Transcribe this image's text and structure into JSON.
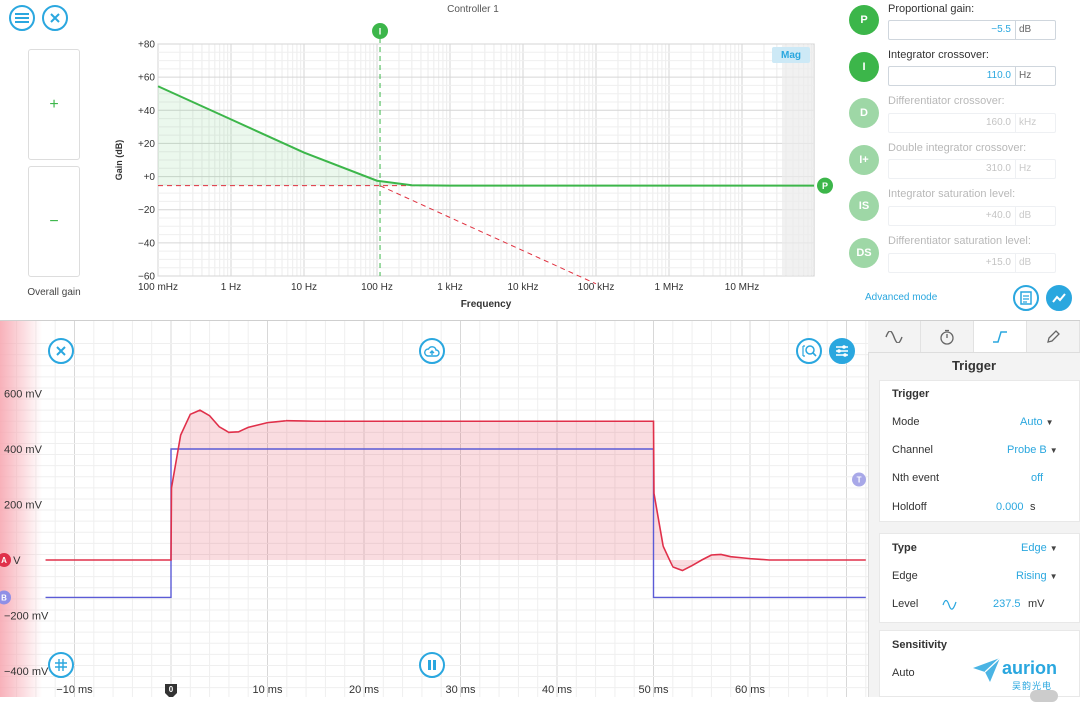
{
  "controller": {
    "title": "Controller 1",
    "overall_gain_label": "Overall gain",
    "plus": "+",
    "minus": "−",
    "mag_badge": "Mag",
    "advanced_mode": "Advanced mode",
    "marker_i": "I",
    "marker_p": "P",
    "params": [
      {
        "badge": "P",
        "label": "Proportional gain:",
        "value": "−5.5",
        "unit": "dB",
        "enabled": true
      },
      {
        "badge": "I",
        "label": "Integrator crossover:",
        "value": "110.0",
        "unit": "Hz",
        "enabled": true
      },
      {
        "badge": "D",
        "label": "Differentiator crossover:",
        "value": "160.0",
        "unit": "kHz",
        "enabled": false
      },
      {
        "badge": "I+",
        "label": "Double integrator crossover:",
        "value": "310.0",
        "unit": "Hz",
        "enabled": false
      },
      {
        "badge": "IS",
        "label": "Integrator saturation level:",
        "value": "+40.0",
        "unit": "dB",
        "enabled": false
      },
      {
        "badge": "DS",
        "label": "Differentiator saturation level:",
        "value": "+15.0",
        "unit": "dB",
        "enabled": false
      }
    ],
    "colors": {
      "green": "#3cb64a",
      "accent": "#2aa7df",
      "red": "#e0303f",
      "disabled": "#9ed7a6"
    }
  },
  "chart_data": [
    {
      "type": "line",
      "title": "Controller 1",
      "xlabel": "Frequency",
      "ylabel": "Gain (dB)",
      "xscale": "log",
      "xlim_hz": [
        0.1,
        100000000
      ],
      "ylim": [
        -60,
        80
      ],
      "yticks": [
        80,
        60,
        40,
        20,
        0,
        -20,
        -40,
        -60
      ],
      "ytick_labels": [
        "+80",
        "+60",
        "+40",
        "+20",
        "+0",
        "−20",
        "−40",
        "−60"
      ],
      "xticks_hz": [
        0.1,
        1,
        10,
        100,
        1000,
        10000,
        100000,
        1000000,
        10000000
      ],
      "xtick_labels": [
        "100 mHz",
        "1 Hz",
        "10 Hz",
        "100 Hz",
        "1 kHz",
        "10 kHz",
        "100 kHz",
        "1 MHz",
        "10 MHz"
      ],
      "grid": true,
      "series": [
        {
          "name": "",
          "style": "solid",
          "color": "#3cb64a",
          "x": [
            0.1,
            1,
            10,
            100,
            300,
            1000,
            100000000
          ],
          "y": [
            54.5,
            34.5,
            14.5,
            -2.5,
            -5.2,
            -5.5,
            -5.5
          ]
        },
        {
          "name": "",
          "style": "dashed",
          "color": "#e0303f",
          "x": [
            0.1,
            110,
            100000000
          ],
          "y": [
            -5.5,
            -5.5,
            -5.5
          ]
        },
        {
          "name": "",
          "style": "dashed",
          "color": "#e0303f",
          "x": [
            110,
            1000,
            10000,
            100000
          ],
          "y": [
            -5.5,
            -24.7,
            -44.7,
            -64.7
          ]
        }
      ],
      "markers": {
        "integrator_crossover_hz": 110,
        "proportional_gain_db": -5.5
      }
    },
    {
      "type": "line",
      "xlabel": "",
      "ylabel": "",
      "xlim_ms": [
        -13,
        72
      ],
      "ylim_mv": [
        -420,
        700
      ],
      "yticks": [
        600,
        400,
        200,
        0,
        -200,
        -400
      ],
      "ytick_labels": [
        "600 mV",
        "400 mV",
        "200 mV",
        "0 V",
        "−200 mV",
        "−400 mV"
      ],
      "xticks": [
        -10,
        0,
        10,
        20,
        30,
        40,
        50,
        60
      ],
      "xtick_labels": [
        "−10 ms",
        "0",
        "10 ms",
        "20 ms",
        "30 ms",
        "40 ms",
        "50 ms",
        "60 ms"
      ],
      "grid": true,
      "series": [
        {
          "name": "A",
          "color": "#e0304a",
          "x": [
            -13,
            0,
            0.05,
            1,
            2,
            3,
            4,
            5,
            6,
            7,
            8,
            10,
            12,
            15,
            20,
            30,
            40,
            50,
            50.05,
            51,
            52,
            53,
            54,
            55,
            56,
            57,
            58,
            60,
            62,
            66,
            72
          ],
          "y": [
            0,
            0,
            260,
            450,
            525,
            540,
            520,
            480,
            460,
            462,
            478,
            495,
            502,
            500,
            500,
            500,
            500,
            500,
            240,
            50,
            -25,
            -38,
            -20,
            0,
            18,
            20,
            12,
            5,
            0,
            0,
            0
          ]
        },
        {
          "name": "B",
          "color": "#5b5bd6",
          "x": [
            -13,
            0,
            0,
            50,
            50,
            72
          ],
          "y": [
            -135,
            -135,
            400,
            400,
            -135,
            -135
          ]
        }
      ],
      "trigger_time_ms": 0,
      "trigger_level_mv": 237.5
    }
  ],
  "scope": {
    "channel_a_label": "A",
    "channel_b_label": "B",
    "trigger_marker": "T",
    "trigger_origin": "0"
  },
  "panel": {
    "title": "Trigger",
    "trigger_section": "Trigger",
    "mode_label": "Mode",
    "mode_value": "Auto",
    "channel_label": "Channel",
    "channel_value": "Probe B",
    "nth_label": "Nth event",
    "nth_value": "off",
    "holdoff_label": "Holdoff",
    "holdoff_value": "0.000",
    "holdoff_unit": "s",
    "type_label": "Type",
    "type_value": "Edge",
    "edge_label": "Edge",
    "edge_value": "Rising",
    "level_label": "Level",
    "level_value": "237.5",
    "level_unit": "mV",
    "sensitivity_section": "Sensitivity",
    "auto_label": "Auto"
  },
  "watermark": {
    "brand": "aurion",
    "sub": "吴韵光电"
  }
}
